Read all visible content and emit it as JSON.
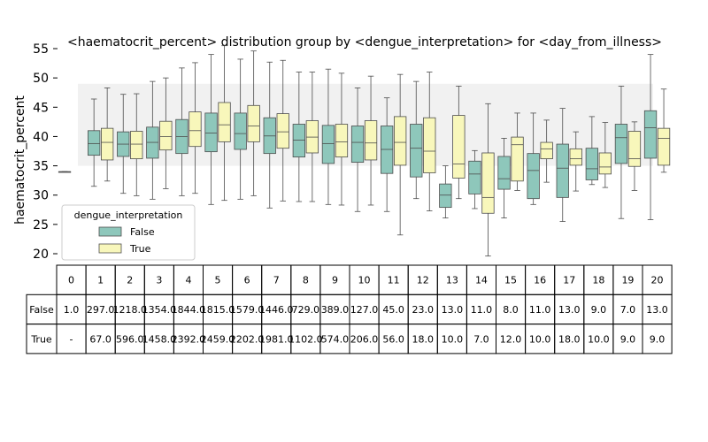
{
  "chart_data": {
    "type": "box",
    "title": "<haematocrit_percent> distribution group by <dengue_interpretation> for <day_from_illness>",
    "xlabel": "",
    "ylabel": "haematocrit_percent",
    "ylim": [
      18,
      57
    ],
    "yticks": [
      20,
      25,
      30,
      35,
      40,
      45,
      50,
      55
    ],
    "reference_band": [
      35,
      49
    ],
    "categories": [
      "0",
      "1",
      "2",
      "3",
      "4",
      "5",
      "6",
      "7",
      "8",
      "9",
      "10",
      "11",
      "12",
      "13",
      "14",
      "15",
      "16",
      "17",
      "18",
      "19",
      "20"
    ],
    "legend": {
      "title": "dengue_interpretation",
      "placement": "lower-left",
      "entries": [
        "False",
        "True"
      ]
    },
    "series": [
      {
        "name": "False",
        "color": "#8ec7bb",
        "boxes": [
          {
            "day": 0,
            "whislo": 34,
            "q1": 34,
            "med": 34,
            "q3": 34,
            "whishi": 34
          },
          {
            "day": 1,
            "whislo": 31.5,
            "q1": 36.8,
            "med": 38.8,
            "q3": 41,
            "whishi": 46.4
          },
          {
            "day": 2,
            "whislo": 30.3,
            "q1": 36.6,
            "med": 38.7,
            "q3": 40.8,
            "whishi": 47.2
          },
          {
            "day": 3,
            "whislo": 29.3,
            "q1": 36.3,
            "med": 39,
            "q3": 41.6,
            "whishi": 49.4
          },
          {
            "day": 4,
            "whislo": 29.9,
            "q1": 37.1,
            "med": 40,
            "q3": 42.9,
            "whishi": 51.7
          },
          {
            "day": 5,
            "whislo": 28.4,
            "q1": 37.4,
            "med": 40.6,
            "q3": 44,
            "whishi": 54
          },
          {
            "day": 6,
            "whislo": 29.3,
            "q1": 37.8,
            "med": 40.5,
            "q3": 44,
            "whishi": 53.2
          },
          {
            "day": 7,
            "whislo": 27.8,
            "q1": 37.1,
            "med": 40.1,
            "q3": 43.2,
            "whishi": 52.7
          },
          {
            "day": 8,
            "whislo": 28.9,
            "q1": 36.5,
            "med": 39.4,
            "q3": 42.1,
            "whishi": 51
          },
          {
            "day": 9,
            "whislo": 28.4,
            "q1": 35.4,
            "med": 38.8,
            "q3": 41.9,
            "whishi": 51.5
          },
          {
            "day": 10,
            "whislo": 27.2,
            "q1": 35.6,
            "med": 39,
            "q3": 41.8,
            "whishi": 48.3
          },
          {
            "day": 11,
            "whislo": 27.2,
            "q1": 33.7,
            "med": 37.8,
            "q3": 41.8,
            "whishi": 46.6
          },
          {
            "day": 12,
            "whislo": 29.4,
            "q1": 33.1,
            "med": 38,
            "q3": 42.1,
            "whishi": 49.4
          },
          {
            "day": 13,
            "whislo": 26.1,
            "q1": 27.9,
            "med": 30,
            "q3": 31.9,
            "whishi": 35
          },
          {
            "day": 14,
            "whislo": 27.7,
            "q1": 30.2,
            "med": 33.6,
            "q3": 35.8,
            "whishi": 37.6
          },
          {
            "day": 15,
            "whislo": 26.1,
            "q1": 31,
            "med": 32.8,
            "q3": 36.6,
            "whishi": 39.7
          },
          {
            "day": 16,
            "whislo": 28.4,
            "q1": 29.4,
            "med": 34.2,
            "q3": 37.1,
            "whishi": 44
          },
          {
            "day": 17,
            "whislo": 25.5,
            "q1": 29.6,
            "med": 34.6,
            "q3": 38.7,
            "whishi": 44.8
          },
          {
            "day": 18,
            "whislo": 31.8,
            "q1": 32.6,
            "med": 34.5,
            "q3": 38,
            "whishi": 43.4
          },
          {
            "day": 19,
            "whislo": 26,
            "q1": 35.4,
            "med": 39.8,
            "q3": 42.1,
            "whishi": 48.6
          },
          {
            "day": 20,
            "whislo": 25.8,
            "q1": 36.3,
            "med": 41.5,
            "q3": 44.4,
            "whishi": 54
          }
        ]
      },
      {
        "name": "True",
        "color": "#f8f7bb",
        "boxes": [
          {
            "day": 1,
            "whislo": 32.4,
            "q1": 36,
            "med": 39,
            "q3": 41.4,
            "whishi": 48.3
          },
          {
            "day": 2,
            "whislo": 29.9,
            "q1": 36.2,
            "med": 38.7,
            "q3": 40.9,
            "whishi": 47.3
          },
          {
            "day": 3,
            "whislo": 31.1,
            "q1": 37.7,
            "med": 40,
            "q3": 42.6,
            "whishi": 50
          },
          {
            "day": 4,
            "whislo": 30.3,
            "q1": 38.3,
            "med": 41,
            "q3": 44.2,
            "whishi": 52.6
          },
          {
            "day": 5,
            "whislo": 29.1,
            "q1": 39.1,
            "med": 42,
            "q3": 45.8,
            "whishi": 55.5
          },
          {
            "day": 6,
            "whislo": 29.9,
            "q1": 39.1,
            "med": 41.8,
            "q3": 45.3,
            "whishi": 54.6
          },
          {
            "day": 7,
            "whislo": 29,
            "q1": 38,
            "med": 40.8,
            "q3": 43.9,
            "whishi": 53
          },
          {
            "day": 8,
            "whislo": 28.9,
            "q1": 37.2,
            "med": 39.9,
            "q3": 42.7,
            "whishi": 51
          },
          {
            "day": 9,
            "whislo": 28.3,
            "q1": 36.5,
            "med": 39.1,
            "q3": 42.1,
            "whishi": 50.8
          },
          {
            "day": 10,
            "whislo": 28.3,
            "q1": 36,
            "med": 38.9,
            "q3": 42.7,
            "whishi": 50.3
          },
          {
            "day": 11,
            "whislo": 23.2,
            "q1": 35.1,
            "med": 39,
            "q3": 43.4,
            "whishi": 50.6
          },
          {
            "day": 12,
            "whislo": 27.3,
            "q1": 33.8,
            "med": 37.5,
            "q3": 43.2,
            "whishi": 51
          },
          {
            "day": 13,
            "whislo": 29.4,
            "q1": 32.9,
            "med": 35.3,
            "q3": 43.6,
            "whishi": 48.6
          },
          {
            "day": 14,
            "whislo": 19.6,
            "q1": 26.9,
            "med": 29.6,
            "q3": 37.2,
            "whishi": 45.6
          },
          {
            "day": 15,
            "whislo": 30.8,
            "q1": 32.4,
            "med": 38.6,
            "q3": 39.9,
            "whishi": 44
          },
          {
            "day": 16,
            "whislo": 32.2,
            "q1": 36.2,
            "med": 37.9,
            "q3": 39,
            "whishi": 42.8
          },
          {
            "day": 17,
            "whislo": 30.7,
            "q1": 35.1,
            "med": 36.2,
            "q3": 37.9,
            "whishi": 40.8
          },
          {
            "day": 18,
            "whislo": 31.3,
            "q1": 33.6,
            "med": 34.8,
            "q3": 37.2,
            "whishi": 42.4
          },
          {
            "day": 19,
            "whislo": 30.8,
            "q1": 34.9,
            "med": 36.2,
            "q3": 40.9,
            "whishi": 42.5
          },
          {
            "day": 20,
            "whislo": 33.9,
            "q1": 35.1,
            "med": 39.7,
            "q3": 41.4,
            "whishi": 48.1
          }
        ]
      }
    ],
    "table": {
      "header": [
        "0",
        "1",
        "2",
        "3",
        "4",
        "5",
        "6",
        "7",
        "8",
        "9",
        "10",
        "11",
        "12",
        "13",
        "14",
        "15",
        "16",
        "17",
        "18",
        "19",
        "20"
      ],
      "rows": [
        {
          "label": "False",
          "cells": [
            "1.0",
            "297.0",
            "1218.0",
            "1354.0",
            "1844.0",
            "1815.0",
            "1579.0",
            "1446.0",
            "729.0",
            "389.0",
            "127.0",
            "45.0",
            "23.0",
            "13.0",
            "11.0",
            "8.0",
            "11.0",
            "13.0",
            "9.0",
            "7.0",
            "13.0"
          ]
        },
        {
          "label": "True",
          "cells": [
            "-",
            "67.0",
            "596.0",
            "1458.0",
            "2392.0",
            "2459.0",
            "2202.0",
            "1981.0",
            "1102.0",
            "574.0",
            "206.0",
            "56.0",
            "18.0",
            "10.0",
            "7.0",
            "12.0",
            "10.0",
            "18.0",
            "10.0",
            "9.0",
            "9.0"
          ]
        }
      ]
    }
  }
}
